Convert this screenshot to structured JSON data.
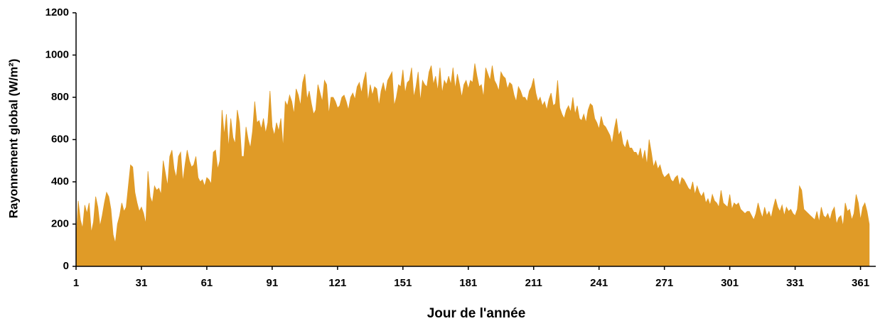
{
  "chart_data": {
    "type": "area",
    "x_label": "Jour de l'année",
    "y_label": "Rayonnement global (W/m²)",
    "color": "#e09b27",
    "xlim": [
      1,
      368
    ],
    "ylim": [
      0,
      1200
    ],
    "xticks": [
      1,
      31,
      61,
      91,
      121,
      151,
      181,
      211,
      241,
      271,
      301,
      331,
      361
    ],
    "yticks": [
      0,
      200,
      400,
      600,
      800,
      1000,
      1200
    ],
    "grid": false,
    "series": [
      {
        "name": "Rayonnement global",
        "color": "#e09b27",
        "x": [
          1,
          2,
          3,
          4,
          5,
          6,
          7,
          8,
          9,
          10,
          11,
          12,
          13,
          14,
          15,
          16,
          17,
          18,
          19,
          20,
          21,
          22,
          23,
          24,
          25,
          26,
          27,
          28,
          29,
          30,
          31,
          32,
          33,
          34,
          35,
          36,
          37,
          38,
          39,
          40,
          41,
          42,
          43,
          44,
          45,
          46,
          47,
          48,
          49,
          50,
          51,
          52,
          53,
          54,
          55,
          56,
          57,
          58,
          59,
          60,
          61,
          62,
          63,
          64,
          65,
          66,
          67,
          68,
          69,
          70,
          71,
          72,
          73,
          74,
          75,
          76,
          77,
          78,
          79,
          80,
          81,
          82,
          83,
          84,
          85,
          86,
          87,
          88,
          89,
          90,
          91,
          92,
          93,
          94,
          95,
          96,
          97,
          98,
          99,
          100,
          101,
          102,
          103,
          104,
          105,
          106,
          107,
          108,
          109,
          110,
          111,
          112,
          113,
          114,
          115,
          116,
          117,
          118,
          119,
          120,
          121,
          122,
          123,
          124,
          125,
          126,
          127,
          128,
          129,
          130,
          131,
          132,
          133,
          134,
          135,
          136,
          137,
          138,
          139,
          140,
          141,
          142,
          143,
          144,
          145,
          146,
          147,
          148,
          149,
          150,
          151,
          152,
          153,
          154,
          155,
          156,
          157,
          158,
          159,
          160,
          161,
          162,
          163,
          164,
          165,
          166,
          167,
          168,
          169,
          170,
          171,
          172,
          173,
          174,
          175,
          176,
          177,
          178,
          179,
          180,
          181,
          182,
          183,
          184,
          185,
          186,
          187,
          188,
          189,
          190,
          191,
          192,
          193,
          194,
          195,
          196,
          197,
          198,
          199,
          200,
          201,
          202,
          203,
          204,
          205,
          206,
          207,
          208,
          209,
          210,
          211,
          212,
          213,
          214,
          215,
          216,
          217,
          218,
          219,
          220,
          221,
          222,
          223,
          224,
          225,
          226,
          227,
          228,
          229,
          230,
          231,
          232,
          233,
          234,
          235,
          236,
          237,
          238,
          239,
          240,
          241,
          242,
          243,
          244,
          245,
          246,
          247,
          248,
          249,
          250,
          251,
          252,
          253,
          254,
          255,
          256,
          257,
          258,
          259,
          260,
          261,
          262,
          263,
          264,
          265,
          266,
          267,
          268,
          269,
          270,
          271,
          272,
          273,
          274,
          275,
          276,
          277,
          278,
          279,
          280,
          281,
          282,
          283,
          284,
          285,
          286,
          287,
          288,
          289,
          290,
          291,
          292,
          293,
          294,
          295,
          296,
          297,
          298,
          299,
          300,
          301,
          302,
          303,
          304,
          305,
          306,
          307,
          308,
          309,
          310,
          311,
          312,
          313,
          314,
          315,
          316,
          317,
          318,
          319,
          320,
          321,
          322,
          323,
          324,
          325,
          326,
          327,
          328,
          329,
          330,
          331,
          332,
          333,
          334,
          335,
          336,
          337,
          338,
          339,
          340,
          341,
          342,
          343,
          344,
          345,
          346,
          347,
          348,
          349,
          350,
          351,
          352,
          353,
          354,
          355,
          356,
          357,
          358,
          359,
          360,
          361,
          362,
          363,
          364,
          365
        ],
        "values": [
          120,
          310,
          220,
          180,
          290,
          250,
          300,
          160,
          210,
          330,
          280,
          190,
          240,
          300,
          350,
          330,
          270,
          150,
          110,
          200,
          240,
          300,
          260,
          280,
          380,
          480,
          470,
          350,
          300,
          260,
          280,
          250,
          200,
          450,
          330,
          300,
          380,
          360,
          370,
          340,
          500,
          440,
          380,
          520,
          550,
          460,
          420,
          520,
          540,
          400,
          480,
          550,
          500,
          470,
          480,
          520,
          420,
          400,
          410,
          380,
          420,
          410,
          390,
          540,
          550,
          460,
          500,
          740,
          620,
          720,
          560,
          700,
          610,
          580,
          740,
          680,
          520,
          520,
          660,
          600,
          560,
          640,
          780,
          680,
          690,
          650,
          700,
          630,
          680,
          830,
          660,
          620,
          680,
          640,
          700,
          560,
          780,
          760,
          810,
          780,
          720,
          840,
          810,
          760,
          870,
          910,
          790,
          830,
          770,
          720,
          740,
          860,
          820,
          780,
          880,
          860,
          720,
          800,
          800,
          780,
          750,
          760,
          800,
          810,
          780,
          740,
          800,
          820,
          790,
          850,
          870,
          820,
          880,
          920,
          780,
          860,
          810,
          850,
          840,
          760,
          830,
          870,
          820,
          880,
          900,
          920,
          760,
          800,
          860,
          850,
          930,
          820,
          870,
          880,
          940,
          800,
          850,
          920,
          780,
          880,
          860,
          850,
          920,
          950,
          860,
          900,
          830,
          940,
          820,
          880,
          860,
          900,
          860,
          940,
          840,
          910,
          860,
          800,
          860,
          880,
          840,
          880,
          870,
          960,
          900,
          850,
          860,
          800,
          940,
          910,
          880,
          950,
          880,
          860,
          830,
          920,
          900,
          890,
          840,
          870,
          860,
          810,
          780,
          850,
          830,
          800,
          800,
          780,
          830,
          850,
          890,
          820,
          780,
          800,
          760,
          780,
          740,
          790,
          820,
          760,
          770,
          880,
          750,
          720,
          700,
          740,
          760,
          730,
          800,
          720,
          760,
          700,
          690,
          720,
          680,
          740,
          770,
          760,
          700,
          680,
          650,
          710,
          670,
          660,
          640,
          620,
          580,
          650,
          700,
          620,
          640,
          580,
          560,
          600,
          560,
          560,
          540,
          540,
          520,
          560,
          500,
          550,
          480,
          600,
          540,
          470,
          500,
          460,
          480,
          440,
          420,
          430,
          440,
          410,
          400,
          420,
          430,
          380,
          420,
          410,
          390,
          370,
          360,
          400,
          340,
          380,
          350,
          330,
          350,
          300,
          320,
          290,
          340,
          310,
          300,
          280,
          360,
          300,
          290,
          280,
          340,
          270,
          300,
          290,
          300,
          270,
          260,
          250,
          260,
          260,
          240,
          220,
          250,
          300,
          260,
          230,
          280,
          240,
          260,
          230,
          280,
          320,
          280,
          260,
          290,
          240,
          280,
          260,
          270,
          250,
          240,
          270,
          380,
          360,
          270,
          260,
          250,
          240,
          230,
          220,
          260,
          210,
          280,
          240,
          230,
          250,
          220,
          260,
          280,
          200,
          230,
          240,
          190,
          300,
          260,
          270,
          220,
          250,
          340,
          300,
          220,
          280,
          300,
          260,
          200
        ]
      }
    ]
  }
}
